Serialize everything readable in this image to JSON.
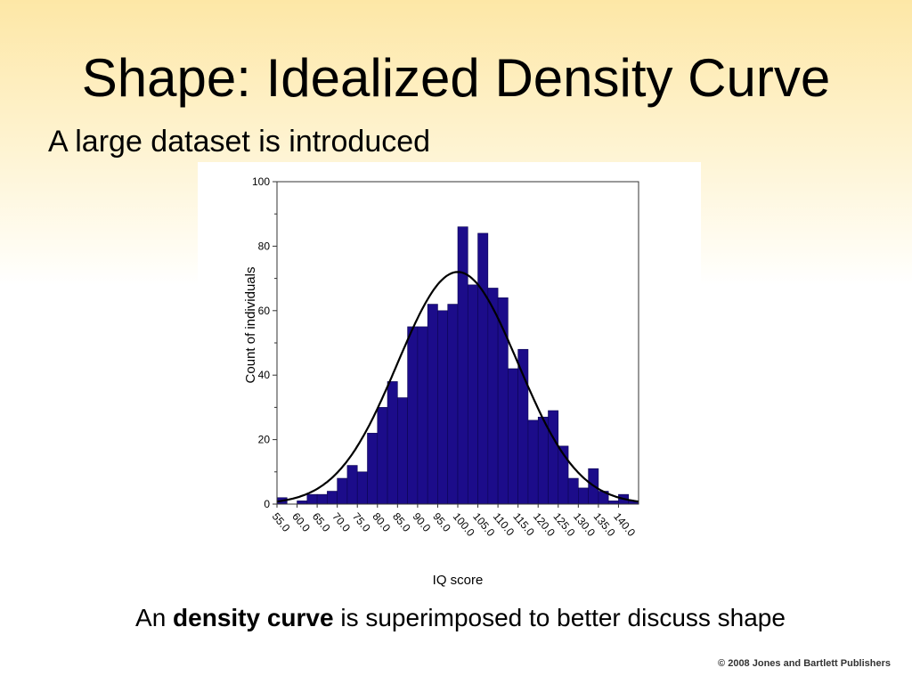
{
  "slide": {
    "title": "Shape: Idealized Density Curve",
    "subtitle": "A large dataset is introduced",
    "caption_before": "An ",
    "caption_bold": "density curve",
    "caption_after": " is superimposed to better discuss shape",
    "copyright": "© 2008 Jones and Bartlett Publishers"
  },
  "chart_data": {
    "type": "bar",
    "xlabel": "IQ score",
    "ylabel": "Count of individuals",
    "ylim": [
      0,
      100
    ],
    "yticks": [
      0,
      20,
      40,
      60,
      80,
      100
    ],
    "xtick_labels": [
      "55.0",
      "60.0",
      "65.0",
      "70.0",
      "75.0",
      "80.0",
      "85.0",
      "90.0",
      "95.0",
      "100.0",
      "105.0",
      "110.0",
      "115.0",
      "120.0",
      "125.0",
      "130.0",
      "135.0",
      "140.0"
    ],
    "bin_start": 55,
    "bin_width": 2.5,
    "counts": [
      2,
      0,
      1,
      3,
      3,
      4,
      8,
      12,
      10,
      22,
      30,
      38,
      33,
      55,
      55,
      62,
      60,
      62,
      86,
      68,
      84,
      67,
      64,
      42,
      48,
      26,
      27,
      29,
      18,
      8,
      5,
      11,
      4,
      1,
      3,
      1
    ],
    "bar_color": "#1c0c8a",
    "curve": {
      "mean": 100,
      "sd": 15,
      "peak": 72,
      "color": "#000000"
    }
  }
}
